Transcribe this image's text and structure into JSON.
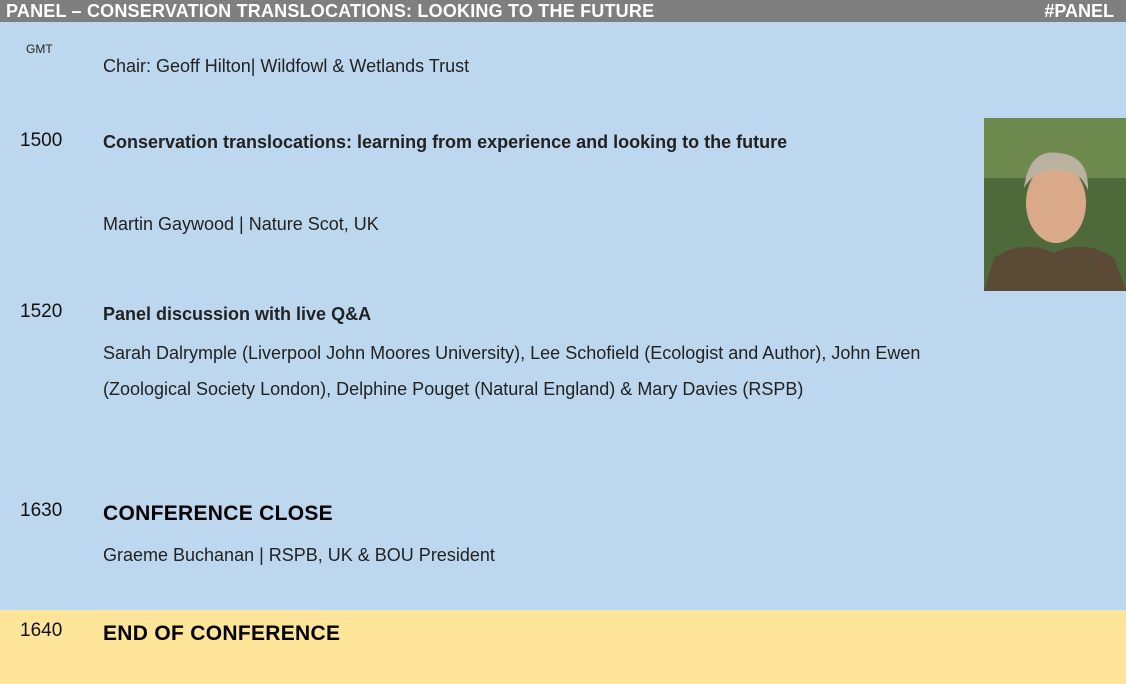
{
  "header": {
    "title": "PANEL – CONSERVATION TRANSLOCATIONS: LOOKING TO THE FUTURE",
    "tag": "#PANEL"
  },
  "timezone": "GMT",
  "chair": "Chair: Geoff Hilton| Wildfowl & Wetlands Trust",
  "sessions": [
    {
      "time": "1500",
      "title": "Conservation translocations: learning from experience and looking to the future",
      "speakers": "Martin Gaywood | Nature Scot, UK"
    },
    {
      "time": "1520",
      "title": "Panel discussion with live Q&A",
      "speakers": "Sarah Dalrymple (Liverpool John Moores University), Lee Schofield (Ecologist and Author), John Ewen (Zoological Society London), Delphine Pouget (Natural England) & Mary Davies (RSPB)"
    },
    {
      "time": "1630",
      "title": "CONFERENCE CLOSE",
      "speakers": "Graeme Buchanan | RSPB, UK & BOU President"
    },
    {
      "time": "1640",
      "title": "END OF CONFERENCE"
    }
  ]
}
